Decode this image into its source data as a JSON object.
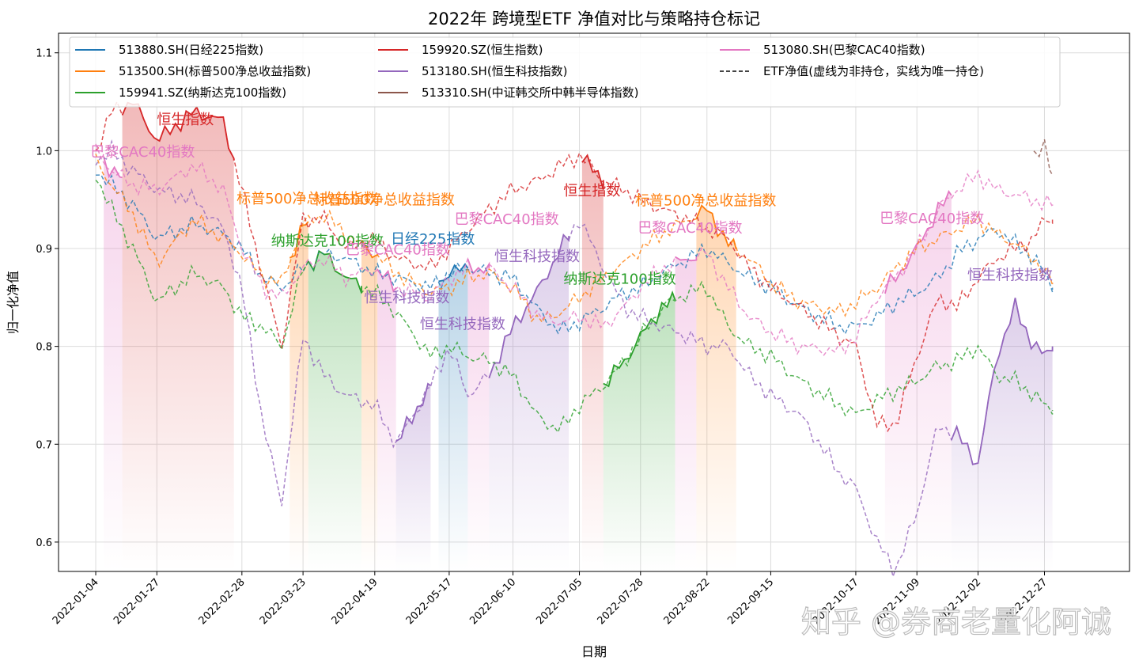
{
  "chart_data": {
    "type": "line",
    "title": "2022年 跨境型ETF 净值对比与策略持仓标记",
    "xlabel": "日期",
    "ylabel": "归一化净值",
    "ylim": [
      0.57,
      1.12
    ],
    "y_ticks": [
      0.6,
      0.7,
      0.8,
      0.9,
      1.0,
      1.1
    ],
    "y_tick_labels": [
      "0.6",
      "0.7",
      "0.8",
      "0.9",
      "1.0",
      "1.1"
    ],
    "x_range": [
      "2021-12-21",
      "2023-01-28"
    ],
    "x_ticks": [
      "2022-01-04",
      "2022-01-27",
      "2022-02-28",
      "2022-03-23",
      "2022-04-19",
      "2022-05-17",
      "2022-06-10",
      "2022-07-05",
      "2022-07-28",
      "2022-08-22",
      "2022-09-15",
      "2022-10-17",
      "2022-11-09",
      "2022-12-02",
      "2022-12-27"
    ],
    "grid": true,
    "legend_placement": "top",
    "legend_note_label": "ETF净值(虚线为非持仓，实线为唯一持仓)",
    "watermark": "知乎 @券商老量化阿诚",
    "series": [
      {
        "key": "nikkei",
        "name": "513880.SH(日经225指数)",
        "color": "#1f77b4",
        "x": [
          "2022-01-04",
          "2022-01-10",
          "2022-01-18",
          "2022-01-27",
          "2022-02-10",
          "2022-02-21",
          "2022-02-28",
          "2022-03-08",
          "2022-03-15",
          "2022-03-23",
          "2022-03-31",
          "2022-04-08",
          "2022-04-19",
          "2022-04-27",
          "2022-05-10",
          "2022-05-17",
          "2022-05-24",
          "2022-06-01",
          "2022-06-10",
          "2022-06-20",
          "2022-06-28",
          "2022-07-05",
          "2022-07-14",
          "2022-07-22",
          "2022-07-28",
          "2022-08-05",
          "2022-08-15",
          "2022-08-22",
          "2022-08-30",
          "2022-09-07",
          "2022-09-15",
          "2022-09-26",
          "2022-10-11",
          "2022-10-17",
          "2022-10-25",
          "2022-11-01",
          "2022-11-09",
          "2022-11-17",
          "2022-11-24",
          "2022-12-02",
          "2022-12-09",
          "2022-12-16",
          "2022-12-23",
          "2022-12-27",
          "2022-12-30"
        ],
        "values": [
          0.98,
          0.965,
          0.945,
          0.91,
          0.925,
          0.915,
          0.9,
          0.87,
          0.86,
          0.88,
          0.895,
          0.89,
          0.875,
          0.87,
          0.86,
          0.875,
          0.88,
          0.875,
          0.87,
          0.835,
          0.815,
          0.825,
          0.84,
          0.855,
          0.86,
          0.875,
          0.89,
          0.9,
          0.885,
          0.87,
          0.86,
          0.84,
          0.82,
          0.82,
          0.83,
          0.845,
          0.855,
          0.87,
          0.895,
          0.91,
          0.92,
          0.905,
          0.89,
          0.875,
          0.86
        ]
      },
      {
        "key": "sp500",
        "name": "513500.SH(标普500净总收益指数)",
        "color": "#ff7f0e",
        "x": [
          "2022-01-04",
          "2022-01-10",
          "2022-01-18",
          "2022-01-27",
          "2022-02-10",
          "2022-02-21",
          "2022-02-28",
          "2022-03-08",
          "2022-03-15",
          "2022-03-23",
          "2022-03-31",
          "2022-04-08",
          "2022-04-19",
          "2022-04-27",
          "2022-05-10",
          "2022-05-17",
          "2022-05-24",
          "2022-06-01",
          "2022-06-10",
          "2022-06-20",
          "2022-06-28",
          "2022-07-05",
          "2022-07-14",
          "2022-07-22",
          "2022-07-28",
          "2022-08-05",
          "2022-08-15",
          "2022-08-22",
          "2022-08-30",
          "2022-09-07",
          "2022-09-15",
          "2022-09-26",
          "2022-10-11",
          "2022-10-17",
          "2022-10-25",
          "2022-11-01",
          "2022-11-09",
          "2022-11-17",
          "2022-11-24",
          "2022-12-02",
          "2022-12-09",
          "2022-12-16",
          "2022-12-23",
          "2022-12-27",
          "2022-12-30"
        ],
        "values": [
          0.99,
          0.965,
          0.935,
          0.885,
          0.93,
          0.91,
          0.895,
          0.87,
          0.865,
          0.925,
          0.935,
          0.915,
          0.895,
          0.875,
          0.855,
          0.86,
          0.87,
          0.875,
          0.86,
          0.825,
          0.835,
          0.85,
          0.87,
          0.885,
          0.9,
          0.915,
          0.93,
          0.94,
          0.905,
          0.89,
          0.865,
          0.845,
          0.835,
          0.845,
          0.86,
          0.88,
          0.9,
          0.91,
          0.92,
          0.93,
          0.915,
          0.905,
          0.89,
          0.875,
          0.865
        ]
      },
      {
        "key": "nasdaq",
        "name": "159941.SZ(纳斯达克100指数)",
        "color": "#2ca02c",
        "x": [
          "2022-01-04",
          "2022-01-10",
          "2022-01-18",
          "2022-01-27",
          "2022-02-10",
          "2022-02-21",
          "2022-02-28",
          "2022-03-08",
          "2022-03-15",
          "2022-03-23",
          "2022-03-31",
          "2022-04-08",
          "2022-04-19",
          "2022-04-27",
          "2022-05-10",
          "2022-05-17",
          "2022-05-24",
          "2022-06-01",
          "2022-06-10",
          "2022-06-20",
          "2022-06-28",
          "2022-07-05",
          "2022-07-14",
          "2022-07-22",
          "2022-07-28",
          "2022-08-05",
          "2022-08-15",
          "2022-08-22",
          "2022-08-30",
          "2022-09-07",
          "2022-09-15",
          "2022-09-26",
          "2022-10-11",
          "2022-10-17",
          "2022-10-25",
          "2022-11-01",
          "2022-11-09",
          "2022-11-17",
          "2022-11-24",
          "2022-12-02",
          "2022-12-09",
          "2022-12-16",
          "2022-12-23",
          "2022-12-27",
          "2022-12-30"
        ],
        "values": [
          0.975,
          0.94,
          0.9,
          0.845,
          0.875,
          0.86,
          0.83,
          0.82,
          0.8,
          0.88,
          0.895,
          0.87,
          0.855,
          0.835,
          0.79,
          0.8,
          0.79,
          0.785,
          0.77,
          0.725,
          0.715,
          0.74,
          0.76,
          0.785,
          0.81,
          0.84,
          0.855,
          0.86,
          0.82,
          0.8,
          0.79,
          0.765,
          0.74,
          0.73,
          0.745,
          0.755,
          0.765,
          0.78,
          0.785,
          0.8,
          0.77,
          0.765,
          0.75,
          0.74,
          0.735
        ]
      },
      {
        "key": "hsi",
        "name": "159920.SZ(恒生指数)",
        "color": "#d62728",
        "x": [
          "2022-01-04",
          "2022-01-10",
          "2022-01-18",
          "2022-01-27",
          "2022-02-10",
          "2022-02-21",
          "2022-02-28",
          "2022-03-08",
          "2022-03-15",
          "2022-03-23",
          "2022-03-31",
          "2022-04-08",
          "2022-04-19",
          "2022-04-27",
          "2022-05-10",
          "2022-05-17",
          "2022-05-24",
          "2022-06-01",
          "2022-06-10",
          "2022-06-20",
          "2022-06-28",
          "2022-07-05",
          "2022-07-14",
          "2022-07-22",
          "2022-07-28",
          "2022-08-05",
          "2022-08-15",
          "2022-08-22",
          "2022-08-30",
          "2022-09-07",
          "2022-09-15",
          "2022-09-26",
          "2022-10-11",
          "2022-10-17",
          "2022-10-25",
          "2022-11-01",
          "2022-11-09",
          "2022-11-17",
          "2022-11-24",
          "2022-12-02",
          "2022-12-09",
          "2022-12-16",
          "2022-12-23",
          "2022-12-27",
          "2022-12-30"
        ],
        "values": [
          1.0,
          1.04,
          1.05,
          1.01,
          1.04,
          1.03,
          0.96,
          0.87,
          0.8,
          0.93,
          0.93,
          0.9,
          0.91,
          0.89,
          0.88,
          0.9,
          0.92,
          0.94,
          0.96,
          0.97,
          0.985,
          0.995,
          0.97,
          0.96,
          0.95,
          0.94,
          0.93,
          0.92,
          0.91,
          0.88,
          0.86,
          0.84,
          0.81,
          0.8,
          0.72,
          0.72,
          0.79,
          0.85,
          0.84,
          0.87,
          0.89,
          0.9,
          0.91,
          0.93,
          0.93
        ]
      },
      {
        "key": "hstech",
        "name": "513180.SH(恒生科技指数)",
        "color": "#9467bd",
        "x": [
          "2022-01-04",
          "2022-01-10",
          "2022-01-18",
          "2022-01-27",
          "2022-02-10",
          "2022-02-21",
          "2022-02-28",
          "2022-03-08",
          "2022-03-15",
          "2022-03-23",
          "2022-03-31",
          "2022-04-08",
          "2022-04-19",
          "2022-04-27",
          "2022-05-10",
          "2022-05-17",
          "2022-05-24",
          "2022-06-01",
          "2022-06-10",
          "2022-06-20",
          "2022-06-28",
          "2022-07-05",
          "2022-07-14",
          "2022-07-22",
          "2022-07-28",
          "2022-08-05",
          "2022-08-15",
          "2022-08-22",
          "2022-08-30",
          "2022-09-07",
          "2022-09-15",
          "2022-09-26",
          "2022-10-11",
          "2022-10-17",
          "2022-10-25",
          "2022-11-01",
          "2022-11-09",
          "2022-11-17",
          "2022-11-24",
          "2022-12-02",
          "2022-12-09",
          "2022-12-16",
          "2022-12-23",
          "2022-12-27",
          "2022-12-30"
        ],
        "values": [
          0.99,
          1.0,
          0.98,
          0.96,
          0.95,
          0.92,
          0.86,
          0.72,
          0.64,
          0.81,
          0.77,
          0.75,
          0.74,
          0.7,
          0.76,
          0.8,
          0.75,
          0.77,
          0.82,
          0.86,
          0.9,
          0.93,
          0.88,
          0.84,
          0.83,
          0.82,
          0.81,
          0.8,
          0.8,
          0.77,
          0.75,
          0.73,
          0.67,
          0.655,
          0.6,
          0.57,
          0.63,
          0.72,
          0.71,
          0.68,
          0.79,
          0.84,
          0.8,
          0.79,
          0.8
        ]
      },
      {
        "key": "kr_semi",
        "name": "513310.SH(中证韩交所中韩半导体指数)",
        "color": "#8c564b",
        "x": [
          "2022-12-23",
          "2022-12-27",
          "2022-12-30"
        ],
        "values": [
          0.99,
          1.01,
          0.975
        ]
      },
      {
        "key": "cac40",
        "name": "513080.SH(巴黎CAC40指数)",
        "color": "#e377c2",
        "x": [
          "2022-01-04",
          "2022-01-10",
          "2022-01-18",
          "2022-01-27",
          "2022-02-10",
          "2022-02-21",
          "2022-02-28",
          "2022-03-08",
          "2022-03-15",
          "2022-03-23",
          "2022-03-31",
          "2022-04-08",
          "2022-04-19",
          "2022-04-27",
          "2022-05-10",
          "2022-05-17",
          "2022-05-24",
          "2022-06-01",
          "2022-06-10",
          "2022-06-20",
          "2022-06-28",
          "2022-07-05",
          "2022-07-14",
          "2022-07-22",
          "2022-07-28",
          "2022-08-05",
          "2022-08-15",
          "2022-08-22",
          "2022-08-30",
          "2022-09-07",
          "2022-09-15",
          "2022-09-26",
          "2022-10-11",
          "2022-10-17",
          "2022-10-25",
          "2022-11-01",
          "2022-11-09",
          "2022-11-17",
          "2022-11-24",
          "2022-12-02",
          "2022-12-09",
          "2022-12-16",
          "2022-12-23",
          "2022-12-27",
          "2022-12-30"
        ],
        "values": [
          1.0,
          0.98,
          0.965,
          0.96,
          0.985,
          0.96,
          0.9,
          0.86,
          0.85,
          0.88,
          0.89,
          0.87,
          0.88,
          0.86,
          0.85,
          0.87,
          0.88,
          0.88,
          0.86,
          0.83,
          0.825,
          0.83,
          0.82,
          0.84,
          0.86,
          0.88,
          0.89,
          0.895,
          0.86,
          0.83,
          0.815,
          0.8,
          0.795,
          0.81,
          0.85,
          0.87,
          0.9,
          0.94,
          0.96,
          0.975,
          0.96,
          0.955,
          0.95,
          0.945,
          0.945
        ]
      }
    ],
    "holdings": [
      {
        "series": "cac40",
        "start": "2022-01-07",
        "end": "2022-01-14",
        "label": "巴黎CAC40指数"
      },
      {
        "series": "hsi",
        "start": "2022-01-14",
        "end": "2022-02-25",
        "label": "恒生指数"
      },
      {
        "series": "sp500",
        "start": "2022-03-18",
        "end": "2022-03-25",
        "label": "标普500净总收益指数"
      },
      {
        "series": "nasdaq",
        "start": "2022-03-25",
        "end": "2022-04-14",
        "label": "纳斯达克100指数"
      },
      {
        "series": "sp500",
        "start": "2022-04-14",
        "end": "2022-04-20",
        "label": "标普500净总收益指数"
      },
      {
        "series": "cac40",
        "start": "2022-04-20",
        "end": "2022-04-27",
        "label": "巴黎CAC40指数"
      },
      {
        "series": "hstech",
        "start": "2022-04-27",
        "end": "2022-05-10",
        "label": "恒生科技指数"
      },
      {
        "series": "nikkei",
        "start": "2022-05-13",
        "end": "2022-05-24",
        "label": "日经225指数"
      },
      {
        "series": "cac40",
        "start": "2022-05-24",
        "end": "2022-06-01",
        "label": "巴黎CAC40指数"
      },
      {
        "series": "hstech",
        "start": "2022-06-01",
        "end": "2022-07-01",
        "label": "恒生科技指数"
      },
      {
        "series": "hsi",
        "start": "2022-07-06",
        "end": "2022-07-14",
        "label": "恒生指数"
      },
      {
        "series": "nasdaq",
        "start": "2022-07-14",
        "end": "2022-08-10",
        "label": "纳斯达克100指数"
      },
      {
        "series": "cac40",
        "start": "2022-08-10",
        "end": "2022-08-18",
        "label": "巴黎CAC40指数"
      },
      {
        "series": "sp500",
        "start": "2022-08-18",
        "end": "2022-09-02",
        "label": "标普500净总收益指数"
      },
      {
        "series": "cac40",
        "start": "2022-10-28",
        "end": "2022-11-22",
        "label": "巴黎CAC40指数"
      },
      {
        "series": "hstech",
        "start": "2022-11-22",
        "end": "2022-12-30",
        "label": "恒生科技指数"
      }
    ],
    "annotations": [
      {
        "text": "恒生指数",
        "x": "2022-01-27",
        "y": 1.027,
        "color": "#d62728"
      },
      {
        "text": "巴黎CAC40指数",
        "x": "2022-01-02",
        "y": 0.994,
        "color": "#e377c2"
      },
      {
        "text": "标普500净总收益指数",
        "x": "2022-02-26",
        "y": 0.946,
        "color": "#ff7f0e"
      },
      {
        "text": "标普500净总收益指数",
        "x": "2022-03-27",
        "y": 0.945,
        "color": "#ff7f0e"
      },
      {
        "text": "纳斯达克100指数",
        "x": "2022-03-11",
        "y": 0.903,
        "color": "#2ca02c"
      },
      {
        "text": "日经225指数",
        "x": "2022-04-25",
        "y": 0.905,
        "color": "#1f77b4"
      },
      {
        "text": "巴黎CAC40指数",
        "x": "2022-04-08",
        "y": 0.894,
        "color": "#e377c2"
      },
      {
        "text": "巴黎CAC40指数",
        "x": "2022-05-19",
        "y": 0.925,
        "color": "#e377c2"
      },
      {
        "text": "恒生科技指数",
        "x": "2022-06-03",
        "y": 0.887,
        "color": "#9467bd"
      },
      {
        "text": "恒生科技指数",
        "x": "2022-04-15",
        "y": 0.845,
        "color": "#9467bd"
      },
      {
        "text": "恒生科技指数",
        "x": "2022-05-06",
        "y": 0.818,
        "color": "#9467bd"
      },
      {
        "text": "恒生指数",
        "x": "2022-06-29",
        "y": 0.954,
        "color": "#d62728"
      },
      {
        "text": "纳斯达克100指数",
        "x": "2022-06-29",
        "y": 0.864,
        "color": "#2ca02c"
      },
      {
        "text": "标普500净总收益指数",
        "x": "2022-07-26",
        "y": 0.944,
        "color": "#ff7f0e"
      },
      {
        "text": "巴黎CAC40指数",
        "x": "2022-07-27",
        "y": 0.916,
        "color": "#e377c2"
      },
      {
        "text": "巴黎CAC40指数",
        "x": "2022-10-26",
        "y": 0.926,
        "color": "#e377c2"
      },
      {
        "text": "恒生科技指数",
        "x": "2022-11-28",
        "y": 0.868,
        "color": "#9467bd"
      }
    ]
  }
}
